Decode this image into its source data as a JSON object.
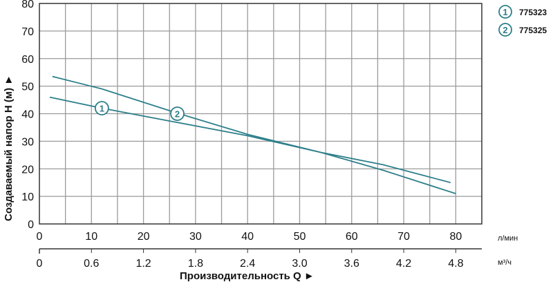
{
  "chart_data": {
    "type": "line",
    "title": "",
    "xlabel": "Производительность Q ►",
    "ylabel": "Создаваемый напор H (м) ►",
    "x_unit_primary": "л/мин",
    "x_unit_secondary": "м³/ч",
    "xlim": [
      0,
      85
    ],
    "ylim": [
      0,
      80
    ],
    "grid": true,
    "x_ticks": [
      "0",
      "10",
      "20",
      "30",
      "40",
      "50",
      "60",
      "70",
      "80"
    ],
    "x_ticks_secondary": [
      "0",
      "0.6",
      "1.2",
      "1.8",
      "2.4",
      "3.0",
      "3.6",
      "4.2",
      "4.8"
    ],
    "y_ticks": [
      "0",
      "10",
      "20",
      "30",
      "40",
      "50",
      "60",
      "70",
      "80"
    ],
    "legend_position": "top-right",
    "series": [
      {
        "name": "775323",
        "marker": "1",
        "color": "#2d7f8a",
        "x": [
          2,
          12,
          26,
          40,
          54,
          66,
          79
        ],
        "y": [
          46,
          42,
          37,
          32,
          26,
          21.5,
          15
        ]
      },
      {
        "name": "775325",
        "marker": "2",
        "color": "#2d7f8a",
        "x": [
          2.5,
          12,
          26,
          40,
          54,
          66,
          80
        ],
        "y": [
          53.5,
          49,
          40.5,
          32.5,
          26,
          19.5,
          11
        ]
      }
    ]
  },
  "legend": [
    {
      "marker": "1",
      "label": "775323"
    },
    {
      "marker": "2",
      "label": "775325"
    }
  ],
  "colors": {
    "curve": "#2d7f8a",
    "grid": "#9a9a9a",
    "axis": "#333333"
  }
}
